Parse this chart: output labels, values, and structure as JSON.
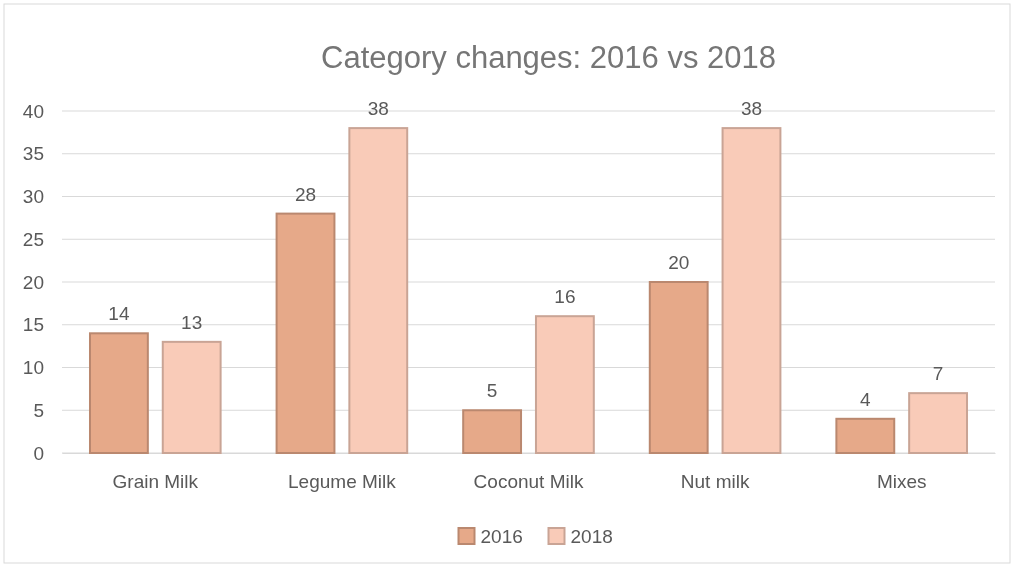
{
  "chart_data": {
    "type": "bar",
    "title": "Category  changes:  2016 vs 2018",
    "categories": [
      "Grain Milk",
      "Legume Milk",
      "Coconut Milk",
      "Nut milk",
      "Mixes"
    ],
    "series": [
      {
        "name": "2016",
        "color": "#e6a989",
        "values": [
          14,
          28,
          5,
          20,
          4
        ]
      },
      {
        "name": "2018",
        "color": "#f9cbb8",
        "values": [
          13,
          38,
          16,
          38,
          7
        ]
      }
    ],
    "ylim": [
      0,
      40
    ],
    "yticks": [
      0,
      5,
      10,
      15,
      20,
      25,
      30,
      35,
      40
    ],
    "grid": "y",
    "legend": "bottom",
    "data_labels": true
  }
}
